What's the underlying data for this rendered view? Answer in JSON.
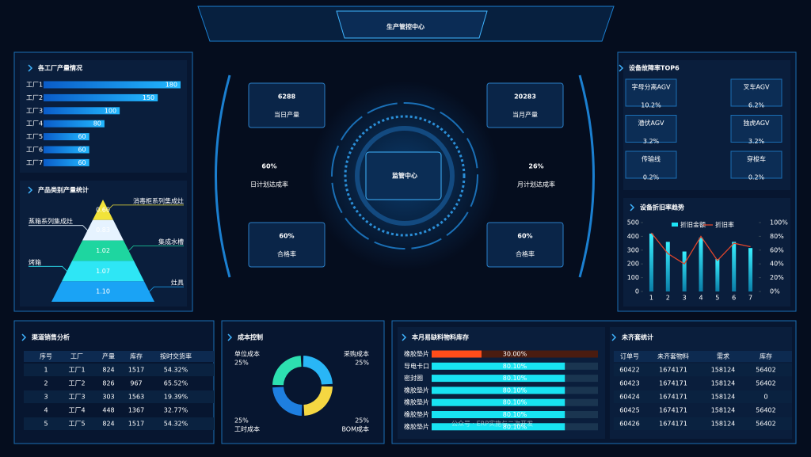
{
  "header": {
    "title": "生产管控中心"
  },
  "watermark": "公众号 · ERP实施与二次开发",
  "center": {
    "label": "监管中心",
    "kpis": [
      {
        "value": "6288",
        "label": "当日产量"
      },
      {
        "value": "60%",
        "label": "日计划达成率"
      },
      {
        "value": "60%",
        "label": "合格率"
      },
      {
        "value": "20283",
        "label": "当月产量"
      },
      {
        "value": "26%",
        "label": "月计划达成率"
      },
      {
        "value": "60%",
        "label": "合格率"
      }
    ]
  },
  "fault_top6": {
    "title": "设备故障率TOP6",
    "items": [
      {
        "name": "字母分离AGV",
        "rate": "10.2%"
      },
      {
        "name": "叉车AGV",
        "rate": "6.2%"
      },
      {
        "name": "潜伏AGV",
        "rate": "3.2%"
      },
      {
        "name": "独虎AGV",
        "rate": "3.2%"
      },
      {
        "name": "传输线",
        "rate": "0.2%"
      },
      {
        "name": "穿梭车",
        "rate": "0.2%"
      }
    ]
  },
  "sales_table": {
    "title": "渠道销售分析",
    "columns": [
      "序号",
      "工厂",
      "产量",
      "库存",
      "按时交货率"
    ],
    "rows": [
      [
        "1",
        "工厂1",
        "824",
        "1517",
        "54.32%"
      ],
      [
        "2",
        "工厂2",
        "826",
        "967",
        "65.52%"
      ],
      [
        "3",
        "工厂3",
        "303",
        "1563",
        "19.39%"
      ],
      [
        "4",
        "工厂4",
        "448",
        "1367",
        "32.77%"
      ],
      [
        "5",
        "工厂5",
        "824",
        "1517",
        "54.32%"
      ]
    ]
  },
  "unmatched_table": {
    "title": "未齐套统计",
    "columns": [
      "订单号",
      "未齐套物料",
      "需求",
      "库存"
    ],
    "rows": [
      [
        "60422",
        "1674171",
        "158124",
        "56402"
      ],
      [
        "60423",
        "1674171",
        "158124",
        "56402"
      ],
      [
        "60424",
        "1674171",
        "158124",
        "0"
      ],
      [
        "60425",
        "1674171",
        "158124",
        "56402"
      ],
      [
        "60426",
        "1674171",
        "158124",
        "56402"
      ]
    ]
  },
  "chart_data": [
    {
      "type": "hbar",
      "title": "各工厂产量情况",
      "categories": [
        "工厂1",
        "工厂2",
        "工厂3",
        "工厂4",
        "工厂5",
        "工厂6",
        "工厂7"
      ],
      "values": [
        180,
        150,
        100,
        80,
        60,
        60,
        60
      ],
      "color": "#1e9bff"
    },
    {
      "type": "pyramid",
      "title": "产品类别产量统计",
      "categories": [
        "消毒柜系列集成灶",
        "蒸箱系列集成灶",
        "集成水槽",
        "烤箱",
        "灶具"
      ],
      "values": [
        0.6,
        0.83,
        1.02,
        1.07,
        1.1
      ],
      "value_labels": [
        "0.60",
        "0.83",
        "1.02",
        "1.07",
        "1.10"
      ],
      "colors": [
        "#f2e33a",
        "#e6f3ff",
        "#1ed6a0",
        "#2ee6f5",
        "#1aa3f5"
      ]
    },
    {
      "type": "combo",
      "title": "设备折旧率趋势",
      "categories": [
        "1",
        "2",
        "3",
        "4",
        "5",
        "6",
        "7"
      ],
      "series": [
        {
          "name": "折旧金额",
          "type": "bar",
          "color": "#1de4f5",
          "values": [
            420,
            360,
            290,
            390,
            235,
            360,
            315
          ]
        },
        {
          "name": "折旧率",
          "type": "line",
          "color": "#e0452b",
          "axis": "y2",
          "values": [
            85,
            55,
            40,
            80,
            45,
            70,
            65
          ]
        }
      ],
      "ylim": [
        0,
        500
      ],
      "yticks": [
        0,
        100,
        200,
        300,
        400,
        500
      ],
      "y2lim": [
        0,
        100
      ],
      "y2ticks": [
        {
          "value": 0,
          "label": "0%"
        },
        {
          "value": 20,
          "label": "20%"
        },
        {
          "value": 40,
          "label": "40%"
        },
        {
          "value": 60,
          "label": "60%"
        },
        {
          "value": 80,
          "label": "80%"
        },
        {
          "value": 100,
          "label": "100%"
        }
      ]
    },
    {
      "type": "donut",
      "title": "成本控制",
      "categories": [
        "采购成本",
        "BOM成本",
        "工时成本",
        "单位成本"
      ],
      "values": [
        25,
        25,
        25,
        25
      ],
      "value_labels": [
        "25%",
        "25%",
        "25%",
        "25%"
      ],
      "colors": [
        "#29b6f6",
        "#f5d742",
        "#1e7fe0",
        "#2de0b0"
      ]
    },
    {
      "type": "progress",
      "title": "本月易缺料物料库存",
      "categories": [
        "橡胶垫片",
        "导电卡口",
        "密封圈",
        "橡胶垫片",
        "橡胶垫片",
        "橡胶垫片",
        "橡胶垫片"
      ],
      "values": [
        30,
        80.1,
        80.1,
        80.1,
        80.1,
        80.1,
        80.1
      ],
      "value_labels": [
        "30.00%",
        "80.10%",
        "80.10%",
        "80.10%",
        "80.10%",
        "80.10%",
        "80.10%"
      ],
      "xlim": [
        0,
        100
      ],
      "colors": [
        "#ff4d1a",
        "#18e3f2",
        "#18e3f2",
        "#18e3f2",
        "#18e3f2",
        "#18e3f2",
        "#18e3f2"
      ]
    }
  ]
}
